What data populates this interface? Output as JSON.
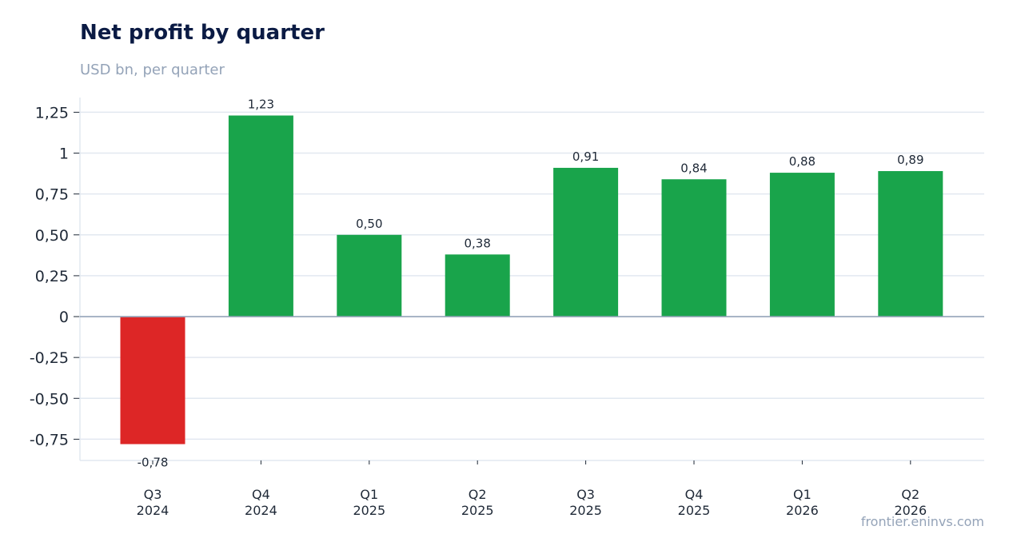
{
  "header": {
    "title": "Net profit by quarter",
    "subtitle": "USD bn, per quarter"
  },
  "footer": {
    "source": "frontier.eninvs.com"
  },
  "colors": {
    "positive": "#19a44b",
    "negative": "#dd2626",
    "grid": "#e2e8f0",
    "zero_line": "#94a3b8"
  },
  "chart_data": {
    "type": "bar",
    "title": "Net profit by quarter",
    "subtitle": "USD bn, per quarter",
    "categories": [
      [
        "Q3",
        "2024"
      ],
      [
        "Q4",
        "2024"
      ],
      [
        "Q1",
        "2025"
      ],
      [
        "Q2",
        "2025"
      ],
      [
        "Q3",
        "2025"
      ],
      [
        "Q4",
        "2025"
      ],
      [
        "Q1",
        "2026"
      ],
      [
        "Q2",
        "2026"
      ]
    ],
    "values": [
      -0.78,
      1.23,
      0.5,
      0.38,
      0.91,
      0.84,
      0.88,
      0.89
    ],
    "data_labels": [
      "-0,78",
      "1,23",
      "0,50",
      "0,38",
      "0,91",
      "0,84",
      "0,88",
      "0,89"
    ],
    "ylim": [
      -0.88,
      1.34
    ],
    "yticks": [
      1.25,
      1,
      0.75,
      0.5,
      0.25,
      0,
      -0.25,
      -0.5,
      -0.75
    ],
    "ytick_labels": [
      "1,25",
      "1",
      "0,75",
      "0,50",
      "0,25",
      "0",
      "-0,25",
      "-0,50",
      "-0,75"
    ],
    "grid": true,
    "legend": "none"
  }
}
